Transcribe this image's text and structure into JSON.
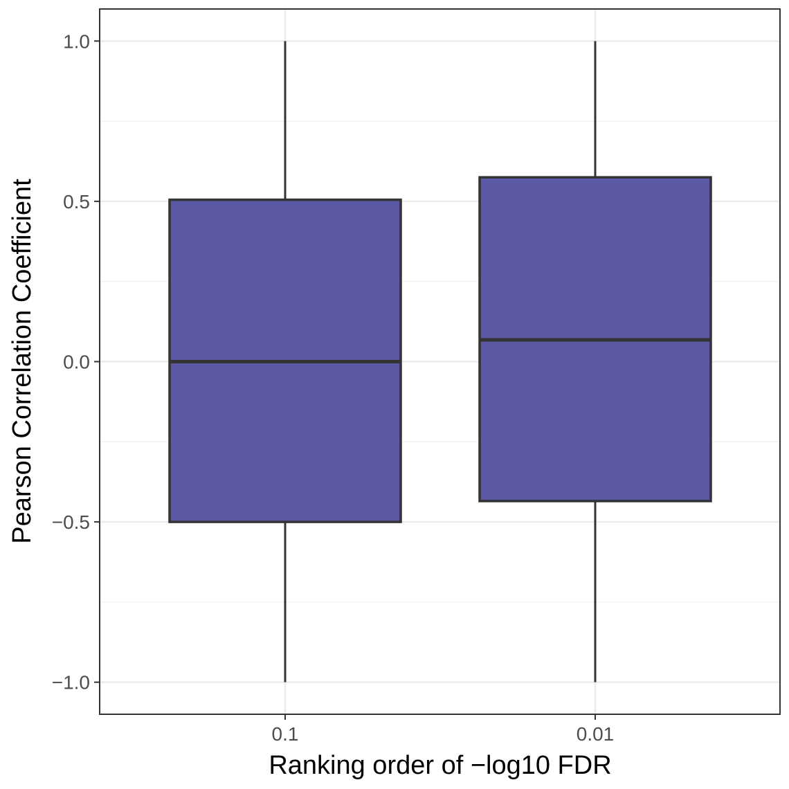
{
  "chart_data": {
    "type": "box",
    "xlabel": "Ranking order of −log10 FDR",
    "ylabel": "Pearson Correlation Coefficient",
    "categories": [
      "0.1",
      "0.01"
    ],
    "boxes": [
      {
        "category": "0.1",
        "min": -1.0,
        "q1": -0.5,
        "median": 0.0,
        "q3": 0.505,
        "max": 1.0
      },
      {
        "category": "0.01",
        "min": -1.0,
        "q1": -0.435,
        "median": 0.068,
        "q3": 0.575,
        "max": 1.0
      }
    ],
    "ylim": [
      -1.1,
      1.1
    ],
    "yticks": [
      -1.0,
      -0.5,
      0.0,
      0.5,
      1.0
    ],
    "ytick_labels": [
      "−1.0",
      "−0.5",
      "0.0",
      "0.5",
      "1.0"
    ],
    "grid": true,
    "legend": "none",
    "colors": {
      "box_fill": "#5b59a4",
      "box_edge": "#333333",
      "grid": "#ebebeb",
      "panel_border": "#333333"
    }
  }
}
